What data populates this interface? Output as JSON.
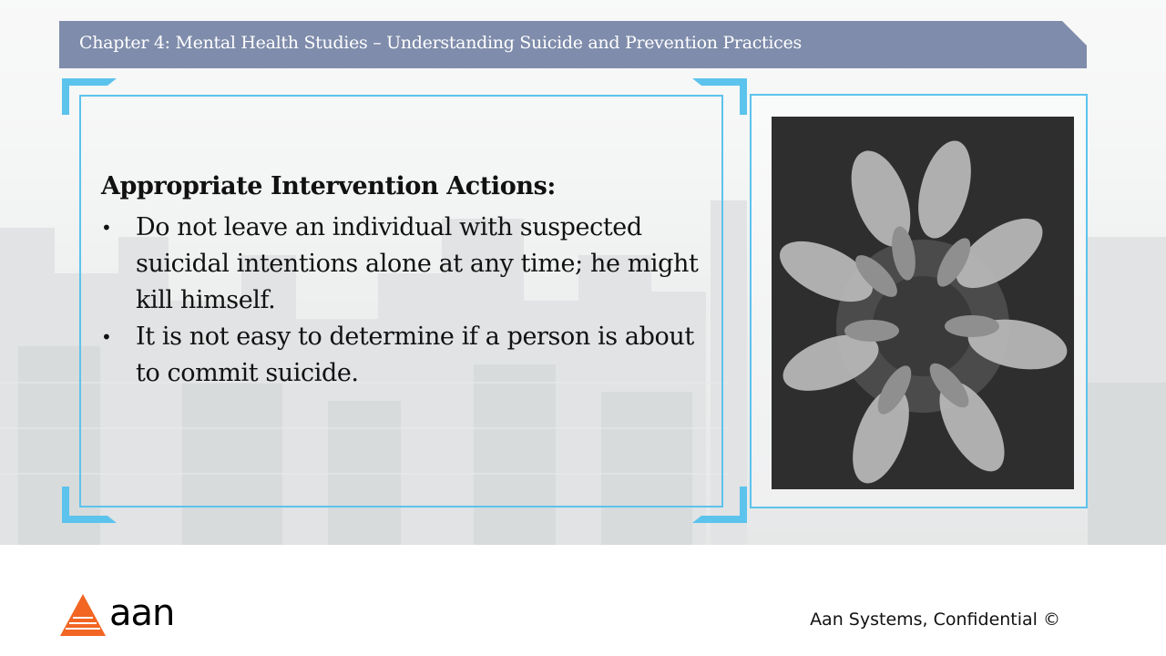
{
  "header": {
    "title": "Chapter 4: Mental Health Studies – Understanding Suicide and Prevention Practices"
  },
  "content": {
    "heading": "Appropriate Intervention Actions:",
    "bullets": [
      "Do not leave an individual with suspected suicidal intentions alone at any time; he might kill himself.",
      "It is not easy to determine if a person is about to commit suicide."
    ]
  },
  "footer": {
    "logo_text": "aan",
    "confidential": "Aan Systems, Confidential ©"
  },
  "colors": {
    "banner": "#7f8cab",
    "frame_accent": "#5cc3ec",
    "logo_orange": "#f26522"
  },
  "icons": {
    "bullet": "bullet-dot-icon",
    "logo": "aan-logo-triangle-icon"
  }
}
